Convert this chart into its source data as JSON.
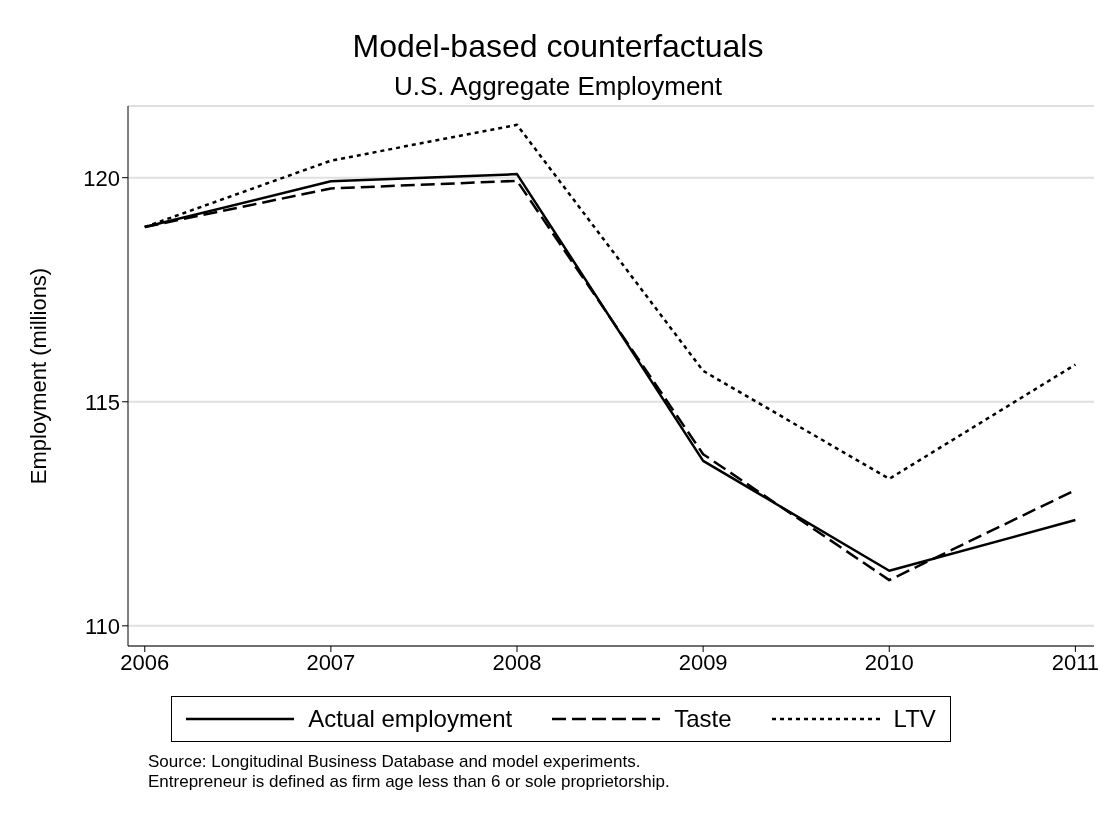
{
  "chart_data": {
    "type": "line",
    "title": "Model-based counterfactuals",
    "subtitle": "U.S. Aggregate Employment",
    "ylabel": "Employment (millions)",
    "x": [
      2006,
      2007,
      2008,
      2009,
      2010,
      2011
    ],
    "series": [
      {
        "name": "Actual employment",
        "color": "#000000",
        "line_style": "solid",
        "values": [
          118.9,
          119.92,
          120.08,
          113.68,
          111.23,
          112.36
        ]
      },
      {
        "name": "Taste",
        "color": "#000000",
        "line_style": "dashed",
        "values": [
          118.9,
          119.76,
          119.93,
          113.83,
          111.02,
          113.03
        ]
      },
      {
        "name": "LTV",
        "color": "#000000",
        "line_style": "dotted",
        "values": [
          118.9,
          120.38,
          121.18,
          115.69,
          113.28,
          115.83
        ]
      }
    ],
    "xlim": [
      2005.91,
      2011.1
    ],
    "xticks": [
      2006,
      2007,
      2008,
      2009,
      2010,
      2011
    ],
    "ylim": [
      109.55,
      121.6
    ],
    "yticks": [
      110,
      115,
      120
    ],
    "grid": "y",
    "legend": "bottom",
    "marker": "none",
    "annotations": [
      "Source: Longitudinal Business Database and model experiments.",
      "Entrepreneur is defined as firm age less than 6 or sole proprietorship."
    ]
  }
}
